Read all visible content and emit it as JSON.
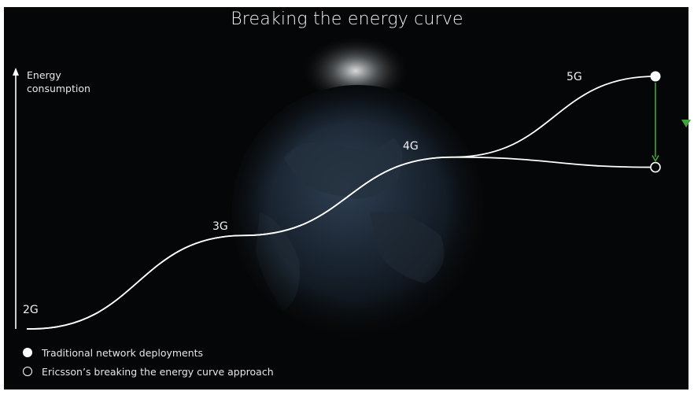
{
  "chart_data": {
    "type": "line",
    "title": "Breaking the energy curve",
    "ylabel_lines": [
      "Energy",
      "consumption"
    ],
    "xlabel": "",
    "x": [
      "2G",
      "3G",
      "4G",
      "5G"
    ],
    "ylim": [
      0,
      100
    ],
    "series": [
      {
        "name": "Traditional network deployments",
        "values": [
          0,
          37,
          68,
          100
        ],
        "color": "#ffffff",
        "endpoint_marker": "filled-circle"
      },
      {
        "name": "Ericsson’s breaking the energy curve approach",
        "values": [
          0,
          37,
          68,
          64
        ],
        "color": "#ffffff",
        "endpoint_marker": "hollow-circle"
      }
    ],
    "annotations": {
      "reduction_arrow_color": "#3fa535",
      "reduction_marker_color": "#3fa535"
    },
    "grid": false,
    "background": "#050607",
    "legend_placement": "bottom-left"
  }
}
